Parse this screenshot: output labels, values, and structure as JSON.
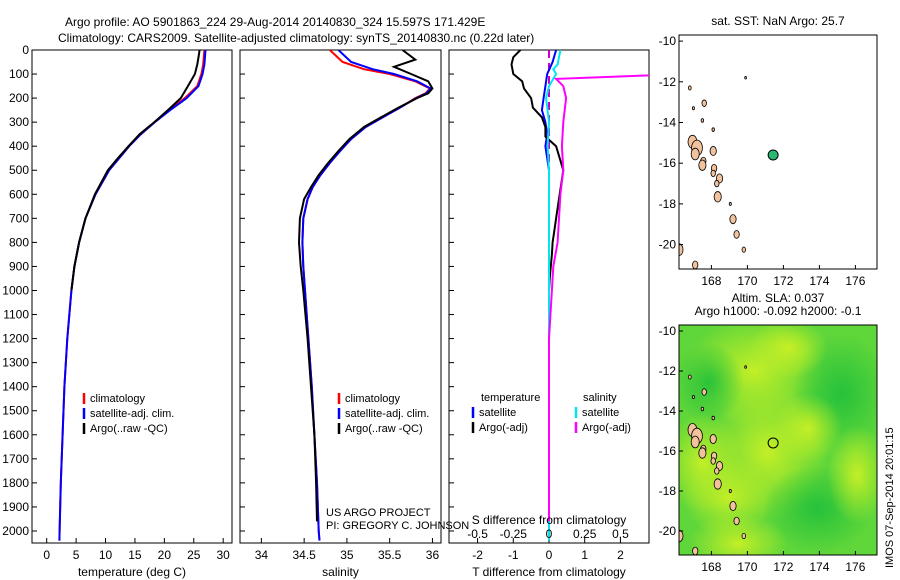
{
  "titles": {
    "line1": "Argo profile: AO 5901863_224 29-Aug-2014 20140830_324 15.597S 171.429E",
    "line2": "Climatology: CARS2009. Satellite-adjusted climatology: synTS_20140830.nc (0.22d later)"
  },
  "credit": {
    "line1": "US ARGO PROJECT",
    "line2": "PI: GREGORY C. JOHNSON"
  },
  "watermark": "IMOS 07-Sep-2014 20:01:15",
  "colors": {
    "climatology": "#ff0000",
    "satellite": "#0000ff",
    "argo": "#000000",
    "satellite_salinity": "#00e5ee",
    "argo_salinity": "#ff00ff",
    "land": "#f2c29c",
    "float_marker": "#2bb673"
  },
  "chart_data": [
    {
      "id": "temperature",
      "type": "line",
      "xlabel": "temperature (deg C)",
      "ylabel": "",
      "xlim": [
        -2.5,
        31.5
      ],
      "ylim": [
        2050,
        0
      ],
      "xticks": [
        0,
        5,
        10,
        15,
        20,
        25,
        30
      ],
      "yticks": [
        0,
        100,
        200,
        300,
        400,
        500,
        600,
        700,
        800,
        900,
        1000,
        1100,
        1200,
        1300,
        1400,
        1500,
        1600,
        1700,
        1800,
        1900,
        2000
      ],
      "legend": [
        "climatology",
        "satellite-adj. clim.",
        "Argo(..raw -QC)"
      ],
      "series": [
        {
          "name": "climatology",
          "color": "#ff0000",
          "depth": [
            0,
            60,
            100,
            150,
            200,
            250,
            300,
            350,
            400,
            450,
            500,
            600,
            700,
            800,
            900,
            1000,
            1200,
            1400,
            1600,
            1800,
            2000,
            2040
          ],
          "values": [
            26.8,
            26.6,
            26.3,
            25.6,
            23.5,
            20.8,
            18.3,
            16.0,
            14.0,
            12.3,
            10.6,
            8.3,
            6.6,
            5.5,
            4.7,
            4.2,
            3.5,
            3.0,
            2.7,
            2.4,
            2.2,
            2.15
          ]
        },
        {
          "name": "satellite-adj. clim.",
          "color": "#0000ff",
          "depth": [
            0,
            60,
            100,
            150,
            200,
            250,
            300,
            350,
            400,
            450,
            500,
            600,
            700,
            800,
            900,
            1000,
            1200,
            1400,
            1600,
            1800,
            2000,
            2040
          ],
          "values": [
            27.0,
            26.8,
            26.5,
            25.8,
            23.8,
            21.0,
            18.4,
            16.0,
            14.0,
            12.3,
            10.6,
            8.3,
            6.6,
            5.5,
            4.7,
            4.2,
            3.5,
            3.0,
            2.7,
            2.4,
            2.2,
            2.15
          ]
        },
        {
          "name": "Argo(..raw -QC)",
          "color": "#000000",
          "depth": [
            0,
            30,
            60,
            100,
            150,
            200,
            250,
            300,
            350,
            400,
            450,
            500,
            600,
            700,
            800,
            900,
            1000
          ],
          "values": [
            26.0,
            25.8,
            25.6,
            25.2,
            24.0,
            22.8,
            20.6,
            18.3,
            15.8,
            13.9,
            12.1,
            10.4,
            8.2,
            6.6,
            5.5,
            4.7,
            4.2
          ]
        }
      ]
    },
    {
      "id": "salinity",
      "type": "line",
      "xlabel": "salinity",
      "ylabel": "",
      "xlim": [
        33.75,
        36.1
      ],
      "ylim": [
        2050,
        0
      ],
      "xticks": [
        34,
        34.5,
        35,
        35.5,
        36
      ],
      "legend": [
        "climatology",
        "satellite-adj. clim.",
        "Argo(..raw -QC)"
      ],
      "series": [
        {
          "name": "climatology",
          "color": "#ff0000",
          "depth": [
            0,
            50,
            80,
            100,
            130,
            160,
            180,
            200,
            240,
            280,
            320,
            370,
            420,
            470,
            520,
            570,
            620,
            700,
            800,
            900,
            1000,
            1200,
            1400,
            1600,
            1800,
            2000,
            2040
          ],
          "values": [
            34.8,
            34.95,
            35.2,
            35.5,
            35.8,
            35.97,
            35.92,
            35.8,
            35.62,
            35.42,
            35.22,
            35.05,
            34.92,
            34.8,
            34.69,
            34.6,
            34.54,
            34.49,
            34.48,
            34.49,
            34.51,
            34.55,
            34.59,
            34.62,
            34.65,
            34.67,
            34.68
          ]
        },
        {
          "name": "satellite-adj. clim.",
          "color": "#0000ff",
          "depth": [
            0,
            50,
            80,
            100,
            130,
            160,
            180,
            200,
            240,
            280,
            320,
            370,
            420,
            470,
            520,
            570,
            620,
            700,
            800,
            900,
            1000,
            1200,
            1400,
            1600,
            1800,
            2000,
            2040
          ],
          "values": [
            34.9,
            35.05,
            35.3,
            35.55,
            35.82,
            35.98,
            35.93,
            35.81,
            35.62,
            35.42,
            35.22,
            35.05,
            34.92,
            34.8,
            34.69,
            34.6,
            34.54,
            34.49,
            34.48,
            34.49,
            34.51,
            34.55,
            34.59,
            34.62,
            34.65,
            34.67,
            34.68
          ]
        },
        {
          "name": "Argo(..raw -QC)",
          "color": "#000000",
          "depth": [
            0,
            40,
            70,
            100,
            130,
            160,
            180,
            200,
            240,
            280,
            320,
            370,
            420,
            470,
            520,
            570,
            620,
            700,
            800,
            900,
            1000,
            1200,
            1400,
            1600,
            1800,
            1960
          ],
          "values": [
            35.65,
            35.8,
            35.55,
            35.75,
            35.95,
            36.0,
            35.95,
            35.82,
            35.6,
            35.4,
            35.2,
            35.03,
            34.9,
            34.78,
            34.67,
            34.58,
            34.5,
            34.45,
            34.44,
            34.46,
            34.49,
            34.54,
            34.58,
            34.62,
            34.64,
            34.65
          ]
        }
      ]
    },
    {
      "id": "difference",
      "type": "line",
      "xlabel": "T difference from climatology",
      "x2label": "S difference from climatology",
      "xlim": [
        -2.8,
        2.8
      ],
      "ylim": [
        2050,
        0
      ],
      "xticks": [
        -2,
        -1,
        0,
        1,
        2
      ],
      "x2ticks": [
        "-0.5",
        "-0.25",
        "0",
        "0.25",
        "0.5"
      ],
      "legend_headers": [
        "temperature",
        "salinity"
      ],
      "legend": [
        "satellite",
        "Argo(-adj)",
        "satellite",
        "Argo(-adj)"
      ],
      "series": [
        {
          "name": "satellite",
          "quantity": "temperature",
          "color": "#0000ff",
          "depth": [
            0,
            50,
            100,
            150,
            200,
            250,
            300,
            350,
            400,
            500,
            600,
            800,
            1000,
            1500,
            2040
          ],
          "values": [
            0.2,
            0.1,
            -0.05,
            -0.1,
            -0.15,
            -0.2,
            -0.1,
            -0.05,
            -0.1,
            0.0,
            0.0,
            0.0,
            0.0,
            0.0,
            0.0
          ]
        },
        {
          "name": "Argo(-adj)",
          "quantity": "temperature",
          "color": "#000000",
          "depth": [
            0,
            30,
            60,
            100,
            130,
            160,
            200,
            240,
            280,
            320,
            360,
            400,
            450,
            500,
            550,
            600,
            650,
            700,
            750,
            800,
            850,
            900,
            950,
            1000
          ],
          "values": [
            -0.8,
            -1.0,
            -1.05,
            -1.0,
            -0.75,
            -0.7,
            -0.5,
            -0.45,
            -0.2,
            -0.1,
            -0.1,
            0.2,
            0.3,
            0.4,
            0.35,
            0.3,
            0.25,
            0.2,
            0.15,
            0.1,
            0.08,
            0.05,
            0.02,
            0.0
          ]
        },
        {
          "name": "satellite",
          "quantity": "salinity",
          "color": "#00e5ee",
          "depth": [
            0,
            60,
            80,
            100,
            150,
            200,
            300,
            400,
            500,
            700,
            1000,
            1500,
            2040
          ],
          "values": [
            0.08,
            0.06,
            0.03,
            0.05,
            0.0,
            -0.02,
            0.0,
            -0.01,
            0.0,
            0.0,
            0.0,
            0.0,
            0.0
          ]
        },
        {
          "name": "Argo(-adj)",
          "quantity": "salinity",
          "color": "#ff00ff",
          "depth": [
            0,
            60,
            90,
            120,
            150,
            200,
            300,
            400,
            500,
            600,
            700,
            800,
            900,
            1000,
            1200,
            1400,
            1600,
            1800,
            1960
          ],
          "values": [
            1.3,
            1.15,
            1.4,
            0.05,
            0.1,
            0.12,
            0.1,
            0.09,
            0.1,
            0.08,
            0.07,
            0.06,
            0.03,
            0.02,
            0.0,
            0.0,
            0.0,
            0.0,
            0.0
          ]
        }
      ]
    },
    {
      "id": "sst_map",
      "type": "map",
      "title": "sat. SST: NaN Argo: 25.7",
      "xlim": [
        166.2,
        177.2
      ],
      "ylim": [
        -21.2,
        -9.7
      ],
      "xticks": [
        168,
        170,
        172,
        174,
        176
      ],
      "yticks": [
        -10,
        -12,
        -14,
        -16,
        -18,
        -20
      ],
      "float": {
        "lon": 171.429,
        "lat": -15.597
      }
    },
    {
      "id": "sla_map",
      "type": "heatmap",
      "title_line1": "Altim. SLA: 0.037",
      "title_line2": "Argo h1000: -0.092 h2000: -0.1",
      "xlim": [
        166.2,
        177.2
      ],
      "ylim": [
        -21.2,
        -9.7
      ],
      "xticks": [
        168,
        170,
        172,
        174,
        176
      ],
      "yticks": [
        -10,
        -12,
        -14,
        -16,
        -18,
        -20
      ],
      "float": {
        "lon": 171.429,
        "lat": -15.597
      }
    }
  ]
}
